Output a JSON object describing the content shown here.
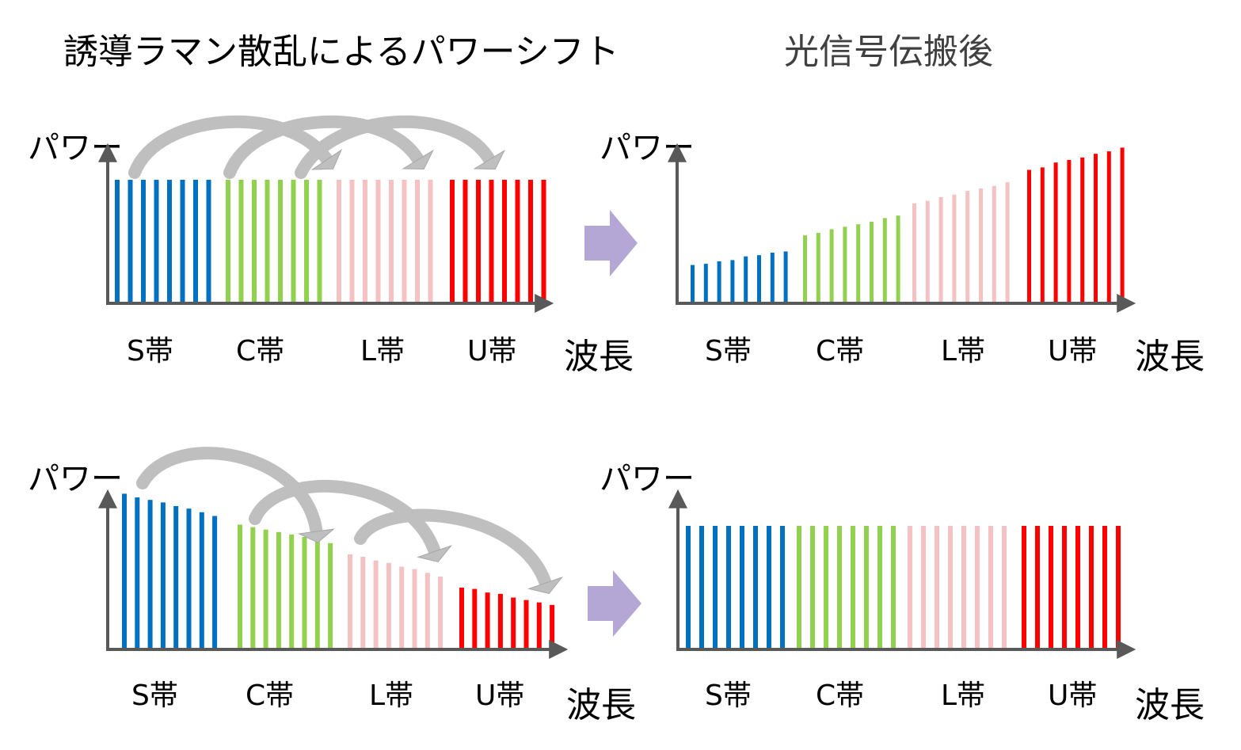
{
  "headings": {
    "left": "誘導ラマン散乱によるパワーシフト",
    "right": "光信号伝搬後"
  },
  "axis_labels": {
    "y": "パワー",
    "x": "波長"
  },
  "bands": [
    {
      "label": "S帯",
      "color": "#0070C0"
    },
    {
      "label": "C帯",
      "color": "#92D050"
    },
    {
      "label": "L帯",
      "color": "#F4C2C2"
    },
    {
      "label": "U帯",
      "color": "#FF0000"
    }
  ],
  "colors": {
    "axis": "#595959",
    "shift_arrow": "#BFBFBF",
    "transition_arrow": "#B4A7D6"
  },
  "icons": {
    "shift_arrow": "curved-arrow-icon",
    "transition_arrow": "right-arrow-icon"
  },
  "chart_data": [
    {
      "type": "bar",
      "panel": "top-left",
      "channels_per_band": 8,
      "values": [
        [
          100,
          100,
          100,
          100,
          100,
          100,
          100,
          100
        ],
        [
          100,
          100,
          100,
          100,
          100,
          100,
          100,
          100
        ],
        [
          100,
          100,
          100,
          100,
          100,
          100,
          100,
          100
        ],
        [
          100,
          100,
          100,
          100,
          100,
          100,
          100,
          100
        ]
      ]
    },
    {
      "type": "bar",
      "panel": "top-right",
      "channels_per_band": 8,
      "values": [
        [
          31,
          32,
          34,
          35,
          38,
          39,
          41,
          42
        ],
        [
          55,
          57,
          60,
          62,
          64,
          66,
          69,
          71
        ],
        [
          81,
          83,
          86,
          88,
          91,
          93,
          95,
          98
        ],
        [
          108,
          110,
          114,
          116,
          118,
          121,
          123,
          126
        ]
      ]
    },
    {
      "type": "bar",
      "panel": "bottom-left",
      "channels_per_band": 8,
      "values": [
        [
          126,
          123,
          121,
          119,
          116,
          114,
          111,
          108
        ],
        [
          101,
          99,
          97,
          95,
          93,
          91,
          88,
          86
        ],
        [
          77,
          75,
          72,
          70,
          67,
          65,
          62,
          59
        ],
        [
          50,
          49,
          46,
          45,
          42,
          40,
          38,
          36
        ]
      ]
    },
    {
      "type": "bar",
      "panel": "bottom-right",
      "channels_per_band": 8,
      "values": [
        [
          100,
          100,
          100,
          100,
          100,
          100,
          100,
          100
        ],
        [
          100,
          100,
          100,
          100,
          100,
          100,
          100,
          100
        ],
        [
          100,
          100,
          100,
          100,
          100,
          100,
          100,
          100
        ],
        [
          100,
          100,
          100,
          100,
          100,
          100,
          100,
          100
        ]
      ]
    }
  ]
}
